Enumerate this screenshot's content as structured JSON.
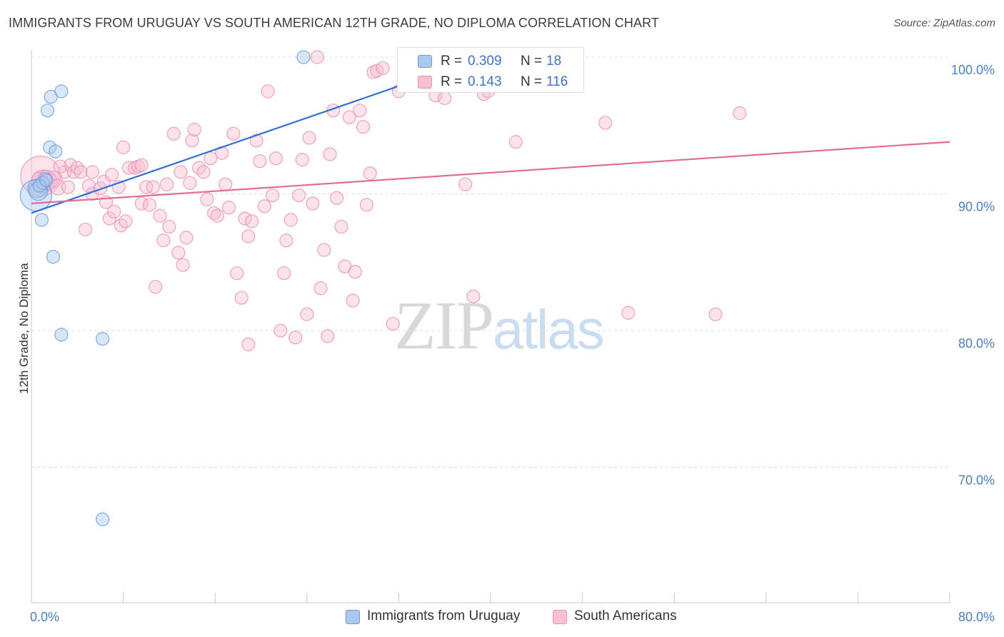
{
  "header": {
    "title": "IMMIGRANTS FROM URUGUAY VS SOUTH AMERICAN 12TH GRADE, NO DIPLOMA CORRELATION CHART",
    "source": "Source: ZipAtlas.com"
  },
  "watermark": {
    "part1": "ZIP",
    "part2": "atlas"
  },
  "legend": {
    "rows": [
      {
        "r_label": "R =",
        "r_value": "0.309",
        "n_label": "N =",
        "n_value": "18"
      },
      {
        "r_label": "R =",
        "r_value": "0.143",
        "n_label": "N =",
        "n_value": "116"
      }
    ]
  },
  "bottom_legend": {
    "series1": "Immigrants from Uruguay",
    "series2": "South Americans"
  },
  "colors": {
    "series1_fill": "#aac8ee",
    "series1_stroke": "#6b9fdc",
    "series1_line": "#2f6fd1",
    "series2_fill": "#f7bfd2",
    "series2_stroke": "#ec93b4",
    "series2_line": "#e06c97",
    "tick_text": "#4a7fc1",
    "grid": "#dcdcdc"
  },
  "chart_data": {
    "type": "scatter",
    "title": "IMMIGRANTS FROM URUGUAY VS SOUTH AMERICAN 12TH GRADE, NO DIPLOMA CORRELATION CHART",
    "xlabel": "",
    "ylabel": "12th Grade, No Diploma",
    "xlim": [
      0,
      80
    ],
    "ylim": [
      61,
      102
    ],
    "x_tick_labels": [
      {
        "value": 0,
        "label": "0.0%"
      },
      {
        "value": 80,
        "label": "80.0%"
      }
    ],
    "y_ticks": [
      {
        "value": 100,
        "label": "100.0%"
      },
      {
        "value": 90,
        "label": "90.0%"
      },
      {
        "value": 80,
        "label": "80.0%"
      },
      {
        "value": 70,
        "label": "70.0%"
      }
    ],
    "grid": true,
    "legend_position": "top-center",
    "series": [
      {
        "name": "Immigrants from Uruguay",
        "r": 0.309,
        "n": 18,
        "trend": {
          "x0": 0,
          "y0": 88.6,
          "x1": 40,
          "y1": 100.2,
          "solid_to_x": 32
        },
        "points": [
          [
            0.4,
            89.9
          ],
          [
            0.5,
            90.4
          ],
          [
            0.6,
            90.2
          ],
          [
            0.9,
            88.1
          ],
          [
            1.2,
            91.1
          ],
          [
            1.4,
            96.1
          ],
          [
            1.6,
            93.4
          ],
          [
            1.7,
            97.1
          ],
          [
            1.9,
            85.4
          ],
          [
            2.1,
            93.1
          ],
          [
            2.6,
            97.5
          ],
          [
            2.6,
            79.7
          ],
          [
            6.2,
            79.4
          ],
          [
            6.2,
            66.2
          ],
          [
            23.7,
            100.0
          ],
          [
            1.0,
            90.8
          ],
          [
            0.7,
            90.6
          ],
          [
            1.3,
            91.0
          ]
        ],
        "point_sizes": [
          22,
          13,
          13,
          9,
          9,
          9,
          9,
          9,
          9,
          9,
          9,
          9,
          9,
          9,
          9,
          9,
          9,
          9
        ]
      },
      {
        "name": "South Americans",
        "r": 0.143,
        "n": 116,
        "trend": {
          "x0": 0,
          "y0": 89.3,
          "x1": 80,
          "y1": 93.8
        },
        "points": [
          [
            0.8,
            91.3
          ],
          [
            1.0,
            90.9
          ],
          [
            1.3,
            91.0
          ],
          [
            1.6,
            90.9
          ],
          [
            2.0,
            91.1
          ],
          [
            2.3,
            90.5
          ],
          [
            2.9,
            91.6
          ],
          [
            3.4,
            92.1
          ],
          [
            3.7,
            91.6
          ],
          [
            4.0,
            91.9
          ],
          [
            4.3,
            91.6
          ],
          [
            4.7,
            87.4
          ],
          [
            5.0,
            90.6
          ],
          [
            5.3,
            90.0
          ],
          [
            6.0,
            90.4
          ],
          [
            6.3,
            90.9
          ],
          [
            6.5,
            89.4
          ],
          [
            6.8,
            88.2
          ],
          [
            7.0,
            91.4
          ],
          [
            7.2,
            88.7
          ],
          [
            7.6,
            90.5
          ],
          [
            7.8,
            87.7
          ],
          [
            8.0,
            93.4
          ],
          [
            8.2,
            88.0
          ],
          [
            8.5,
            91.9
          ],
          [
            9.0,
            91.9
          ],
          [
            9.3,
            92.0
          ],
          [
            9.6,
            89.3
          ],
          [
            10.0,
            90.5
          ],
          [
            10.3,
            89.2
          ],
          [
            10.6,
            90.5
          ],
          [
            10.8,
            83.2
          ],
          [
            11.2,
            88.4
          ],
          [
            11.5,
            86.6
          ],
          [
            11.8,
            90.7
          ],
          [
            12.0,
            87.6
          ],
          [
            12.4,
            94.4
          ],
          [
            12.8,
            85.7
          ],
          [
            13.2,
            84.8
          ],
          [
            13.5,
            86.8
          ],
          [
            13.8,
            90.8
          ],
          [
            14.0,
            93.9
          ],
          [
            14.2,
            94.7
          ],
          [
            14.6,
            91.9
          ],
          [
            15.0,
            91.6
          ],
          [
            15.3,
            89.6
          ],
          [
            15.6,
            92.6
          ],
          [
            15.9,
            88.6
          ],
          [
            16.2,
            88.4
          ],
          [
            16.6,
            93.0
          ],
          [
            16.9,
            90.7
          ],
          [
            17.2,
            89.0
          ],
          [
            17.6,
            94.4
          ],
          [
            17.9,
            84.2
          ],
          [
            18.3,
            82.4
          ],
          [
            18.6,
            88.2
          ],
          [
            18.9,
            86.9
          ],
          [
            19.2,
            88.0
          ],
          [
            19.6,
            93.9
          ],
          [
            19.9,
            92.4
          ],
          [
            20.3,
            89.1
          ],
          [
            20.6,
            97.5
          ],
          [
            21.0,
            89.9
          ],
          [
            21.3,
            92.6
          ],
          [
            21.7,
            80.0
          ],
          [
            22.0,
            84.2
          ],
          [
            22.2,
            86.6
          ],
          [
            22.6,
            88.1
          ],
          [
            23.0,
            79.5
          ],
          [
            23.3,
            89.9
          ],
          [
            23.6,
            92.5
          ],
          [
            24.0,
            81.2
          ],
          [
            24.2,
            94.1
          ],
          [
            24.5,
            89.3
          ],
          [
            24.9,
            100.0
          ],
          [
            25.2,
            83.1
          ],
          [
            25.5,
            85.9
          ],
          [
            25.8,
            79.6
          ],
          [
            26.0,
            92.9
          ],
          [
            26.3,
            96.1
          ],
          [
            26.6,
            89.7
          ],
          [
            27.0,
            87.6
          ],
          [
            27.3,
            84.7
          ],
          [
            27.7,
            95.6
          ],
          [
            28.0,
            82.2
          ],
          [
            28.2,
            84.3
          ],
          [
            28.6,
            96.1
          ],
          [
            28.9,
            94.9
          ],
          [
            29.2,
            89.2
          ],
          [
            29.5,
            91.5
          ],
          [
            29.8,
            98.9
          ],
          [
            30.1,
            99.0
          ],
          [
            30.6,
            99.2
          ],
          [
            31.5,
            80.5
          ],
          [
            32.0,
            97.5
          ],
          [
            32.6,
            98.2
          ],
          [
            33.1,
            100.0
          ],
          [
            34.0,
            98.3
          ],
          [
            35.2,
            97.2
          ],
          [
            36.0,
            97.0
          ],
          [
            37.8,
            90.7
          ],
          [
            38.5,
            82.5
          ],
          [
            39.4,
            97.3
          ],
          [
            39.8,
            97.5
          ],
          [
            42.2,
            93.8
          ],
          [
            50.0,
            95.2
          ],
          [
            52.0,
            81.3
          ],
          [
            59.6,
            81.2
          ],
          [
            61.7,
            95.9
          ],
          [
            18.9,
            79.0
          ],
          [
            13.0,
            91.6
          ],
          [
            3.2,
            90.5
          ],
          [
            9.6,
            92.1
          ],
          [
            5.3,
            91.6
          ],
          [
            2.5,
            92.0
          ],
          [
            0.6,
            91.1
          ]
        ],
        "point_sizes": [
          28,
          16,
          14,
          11,
          11,
          11,
          9,
          9,
          9,
          9,
          9,
          9,
          9,
          9,
          9,
          9,
          9,
          9,
          9,
          9,
          9,
          9,
          9,
          9,
          9,
          9,
          9,
          9,
          9,
          9,
          9,
          9,
          9,
          9,
          9,
          9,
          9,
          9,
          9,
          9,
          9,
          9,
          9,
          9,
          9,
          9,
          9,
          9,
          9,
          9,
          9,
          9,
          9,
          9,
          9,
          9,
          9,
          9,
          9,
          9,
          9,
          9,
          9,
          9,
          9,
          9,
          9,
          9,
          9,
          9,
          9,
          9,
          9,
          9,
          9,
          9,
          9,
          9,
          9,
          9,
          9,
          9,
          9,
          9,
          9,
          9,
          9,
          9,
          9,
          9,
          9,
          9,
          9,
          9,
          9,
          9,
          9,
          9,
          9,
          9,
          9,
          9,
          9,
          9,
          9,
          9,
          9,
          9,
          9,
          9,
          9,
          9,
          9,
          9,
          9,
          9
        ]
      }
    ]
  }
}
